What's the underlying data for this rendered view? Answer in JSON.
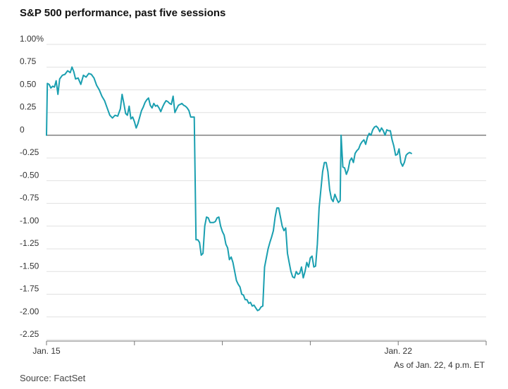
{
  "chart_data": {
    "type": "line",
    "title": "S&P 500 performance, past five sessions",
    "ylabel": "",
    "xlabel": "",
    "ylim": [
      -2.25,
      1.0
    ],
    "y_ticks": [
      {
        "value": 1.0,
        "label": "1.00%"
      },
      {
        "value": 0.75,
        "label": "0.75"
      },
      {
        "value": 0.5,
        "label": "0.50"
      },
      {
        "value": 0.25,
        "label": "0.25"
      },
      {
        "value": 0,
        "label": "0"
      },
      {
        "value": -0.25,
        "label": "-0.25"
      },
      {
        "value": -0.5,
        "label": "-0.50"
      },
      {
        "value": -0.75,
        "label": "-0.75"
      },
      {
        "value": -1.0,
        "label": "-1.00"
      },
      {
        "value": -1.25,
        "label": "-1.25"
      },
      {
        "value": -1.5,
        "label": "-1.50"
      },
      {
        "value": -1.75,
        "label": "-1.75"
      },
      {
        "value": -2.0,
        "label": "-2.00"
      },
      {
        "value": -2.25,
        "label": "-2.25"
      }
    ],
    "xlim": [
      0,
      5
    ],
    "x_session_boundaries": [
      0,
      1,
      2,
      3,
      4,
      5
    ],
    "x_tick_labels": [
      {
        "x": 0,
        "label": "Jan. 15"
      },
      {
        "x": 4,
        "label": "Jan. 22"
      }
    ],
    "grid": true,
    "zero_line": true,
    "line_color": "#1a9fb0",
    "series": [
      {
        "name": "",
        "points": [
          [
            0.0,
            0.0
          ],
          [
            0.01,
            0.57
          ],
          [
            0.03,
            0.56
          ],
          [
            0.05,
            0.52
          ],
          [
            0.07,
            0.54
          ],
          [
            0.09,
            0.53
          ],
          [
            0.11,
            0.6
          ],
          [
            0.13,
            0.45
          ],
          [
            0.15,
            0.62
          ],
          [
            0.18,
            0.66
          ],
          [
            0.21,
            0.67
          ],
          [
            0.24,
            0.71
          ],
          [
            0.27,
            0.69
          ],
          [
            0.29,
            0.75
          ],
          [
            0.31,
            0.7
          ],
          [
            0.33,
            0.62
          ],
          [
            0.36,
            0.63
          ],
          [
            0.39,
            0.56
          ],
          [
            0.42,
            0.66
          ],
          [
            0.45,
            0.64
          ],
          [
            0.48,
            0.68
          ],
          [
            0.51,
            0.67
          ],
          [
            0.54,
            0.63
          ],
          [
            0.57,
            0.55
          ],
          [
            0.6,
            0.5
          ],
          [
            0.63,
            0.43
          ],
          [
            0.66,
            0.38
          ],
          [
            0.69,
            0.3
          ],
          [
            0.72,
            0.22
          ],
          [
            0.75,
            0.19
          ],
          [
            0.78,
            0.22
          ],
          [
            0.81,
            0.21
          ],
          [
            0.84,
            0.29
          ],
          [
            0.86,
            0.45
          ],
          [
            0.88,
            0.35
          ],
          [
            0.9,
            0.24
          ],
          [
            0.92,
            0.22
          ],
          [
            0.94,
            0.32
          ],
          [
            0.96,
            0.18
          ],
          [
            0.98,
            0.2
          ],
          [
            1.0,
            0.15
          ],
          [
            1.02,
            0.08
          ],
          [
            1.04,
            0.13
          ],
          [
            1.06,
            0.2
          ],
          [
            1.08,
            0.27
          ],
          [
            1.1,
            0.31
          ],
          [
            1.12,
            0.36
          ],
          [
            1.14,
            0.39
          ],
          [
            1.16,
            0.41
          ],
          [
            1.18,
            0.33
          ],
          [
            1.2,
            0.3
          ],
          [
            1.22,
            0.35
          ],
          [
            1.24,
            0.32
          ],
          [
            1.26,
            0.33
          ],
          [
            1.28,
            0.3
          ],
          [
            1.3,
            0.26
          ],
          [
            1.32,
            0.31
          ],
          [
            1.34,
            0.35
          ],
          [
            1.36,
            0.38
          ],
          [
            1.38,
            0.37
          ],
          [
            1.4,
            0.35
          ],
          [
            1.42,
            0.34
          ],
          [
            1.44,
            0.43
          ],
          [
            1.46,
            0.25
          ],
          [
            1.48,
            0.29
          ],
          [
            1.5,
            0.33
          ],
          [
            1.52,
            0.34
          ],
          [
            1.54,
            0.35
          ],
          [
            1.56,
            0.33
          ],
          [
            1.58,
            0.32
          ],
          [
            1.6,
            0.3
          ],
          [
            1.62,
            0.27
          ],
          [
            1.64,
            0.2
          ],
          [
            1.66,
            0.2
          ],
          [
            1.68,
            0.2
          ],
          [
            1.69,
            -0.45
          ],
          [
            1.7,
            -1.15
          ],
          [
            1.72,
            -1.15
          ],
          [
            1.74,
            -1.18
          ],
          [
            1.76,
            -1.32
          ],
          [
            1.78,
            -1.3
          ],
          [
            1.8,
            -1.0
          ],
          [
            1.82,
            -0.9
          ],
          [
            1.84,
            -0.91
          ],
          [
            1.86,
            -0.96
          ],
          [
            1.88,
            -0.96
          ],
          [
            1.9,
            -0.96
          ],
          [
            1.92,
            -0.95
          ],
          [
            1.94,
            -0.91
          ],
          [
            1.96,
            -0.9
          ],
          [
            1.98,
            -1.0
          ],
          [
            2.0,
            -1.06
          ],
          [
            2.02,
            -1.1
          ],
          [
            2.04,
            -1.2
          ],
          [
            2.06,
            -1.24
          ],
          [
            2.08,
            -1.37
          ],
          [
            2.1,
            -1.34
          ],
          [
            2.12,
            -1.4
          ],
          [
            2.14,
            -1.5
          ],
          [
            2.16,
            -1.6
          ],
          [
            2.18,
            -1.64
          ],
          [
            2.2,
            -1.67
          ],
          [
            2.22,
            -1.75
          ],
          [
            2.24,
            -1.76
          ],
          [
            2.26,
            -1.81
          ],
          [
            2.28,
            -1.81
          ],
          [
            2.3,
            -1.85
          ],
          [
            2.32,
            -1.84
          ],
          [
            2.34,
            -1.88
          ],
          [
            2.36,
            -1.87
          ],
          [
            2.38,
            -1.9
          ],
          [
            2.4,
            -1.93
          ],
          [
            2.42,
            -1.92
          ],
          [
            2.44,
            -1.89
          ],
          [
            2.46,
            -1.88
          ],
          [
            2.48,
            -1.45
          ],
          [
            2.5,
            -1.35
          ],
          [
            2.52,
            -1.25
          ],
          [
            2.54,
            -1.18
          ],
          [
            2.56,
            -1.12
          ],
          [
            2.58,
            -1.05
          ],
          [
            2.6,
            -0.9
          ],
          [
            2.62,
            -0.8
          ],
          [
            2.64,
            -0.8
          ],
          [
            2.66,
            -0.9
          ],
          [
            2.68,
            -1.0
          ],
          [
            2.7,
            -1.05
          ],
          [
            2.72,
            -1.02
          ],
          [
            2.74,
            -1.3
          ],
          [
            2.76,
            -1.4
          ],
          [
            2.78,
            -1.5
          ],
          [
            2.8,
            -1.56
          ],
          [
            2.82,
            -1.57
          ],
          [
            2.84,
            -1.5
          ],
          [
            2.86,
            -1.53
          ],
          [
            2.88,
            -1.52
          ],
          [
            2.9,
            -1.45
          ],
          [
            2.92,
            -1.57
          ],
          [
            2.94,
            -1.5
          ],
          [
            2.96,
            -1.4
          ],
          [
            2.98,
            -1.45
          ],
          [
            3.0,
            -1.35
          ],
          [
            3.02,
            -1.33
          ],
          [
            3.04,
            -1.45
          ],
          [
            3.06,
            -1.44
          ],
          [
            3.08,
            -1.2
          ],
          [
            3.1,
            -0.8
          ],
          [
            3.12,
            -0.6
          ],
          [
            3.14,
            -0.4
          ],
          [
            3.16,
            -0.3
          ],
          [
            3.18,
            -0.3
          ],
          [
            3.2,
            -0.4
          ],
          [
            3.22,
            -0.6
          ],
          [
            3.24,
            -0.7
          ],
          [
            3.26,
            -0.73
          ],
          [
            3.28,
            -0.65
          ],
          [
            3.3,
            -0.7
          ],
          [
            3.32,
            -0.74
          ],
          [
            3.34,
            -0.72
          ],
          [
            3.35,
            0.0
          ],
          [
            3.37,
            -0.35
          ],
          [
            3.39,
            -0.36
          ],
          [
            3.41,
            -0.43
          ],
          [
            3.43,
            -0.38
          ],
          [
            3.45,
            -0.28
          ],
          [
            3.47,
            -0.25
          ],
          [
            3.49,
            -0.3
          ],
          [
            3.51,
            -0.2
          ],
          [
            3.53,
            -0.17
          ],
          [
            3.55,
            -0.15
          ],
          [
            3.57,
            -0.1
          ],
          [
            3.59,
            -0.07
          ],
          [
            3.61,
            -0.05
          ],
          [
            3.63,
            -0.1
          ],
          [
            3.65,
            -0.02
          ],
          [
            3.67,
            0.02
          ],
          [
            3.69,
            0.0
          ],
          [
            3.71,
            0.06
          ],
          [
            3.73,
            0.09
          ],
          [
            3.75,
            0.1
          ],
          [
            3.77,
            0.08
          ],
          [
            3.79,
            0.04
          ],
          [
            3.81,
            0.08
          ],
          [
            3.83,
            0.05
          ],
          [
            3.85,
            0.0
          ],
          [
            3.87,
            0.06
          ],
          [
            3.89,
            0.05
          ],
          [
            3.91,
            0.05
          ],
          [
            3.93,
            -0.05
          ],
          [
            3.95,
            -0.12
          ],
          [
            3.97,
            -0.22
          ],
          [
            3.99,
            -0.21
          ],
          [
            4.01,
            -0.15
          ],
          [
            4.03,
            -0.3
          ],
          [
            4.05,
            -0.34
          ],
          [
            4.07,
            -0.3
          ],
          [
            4.09,
            -0.22
          ],
          [
            4.11,
            -0.2
          ],
          [
            4.13,
            -0.19
          ],
          [
            4.15,
            -0.2
          ]
        ]
      }
    ]
  },
  "header": {
    "title": "S&P 500 performance, past five sessions",
    "asof": "As of Jan. 22, 4 p.m. ET"
  },
  "footer": {
    "source": "Source: FactSet"
  }
}
